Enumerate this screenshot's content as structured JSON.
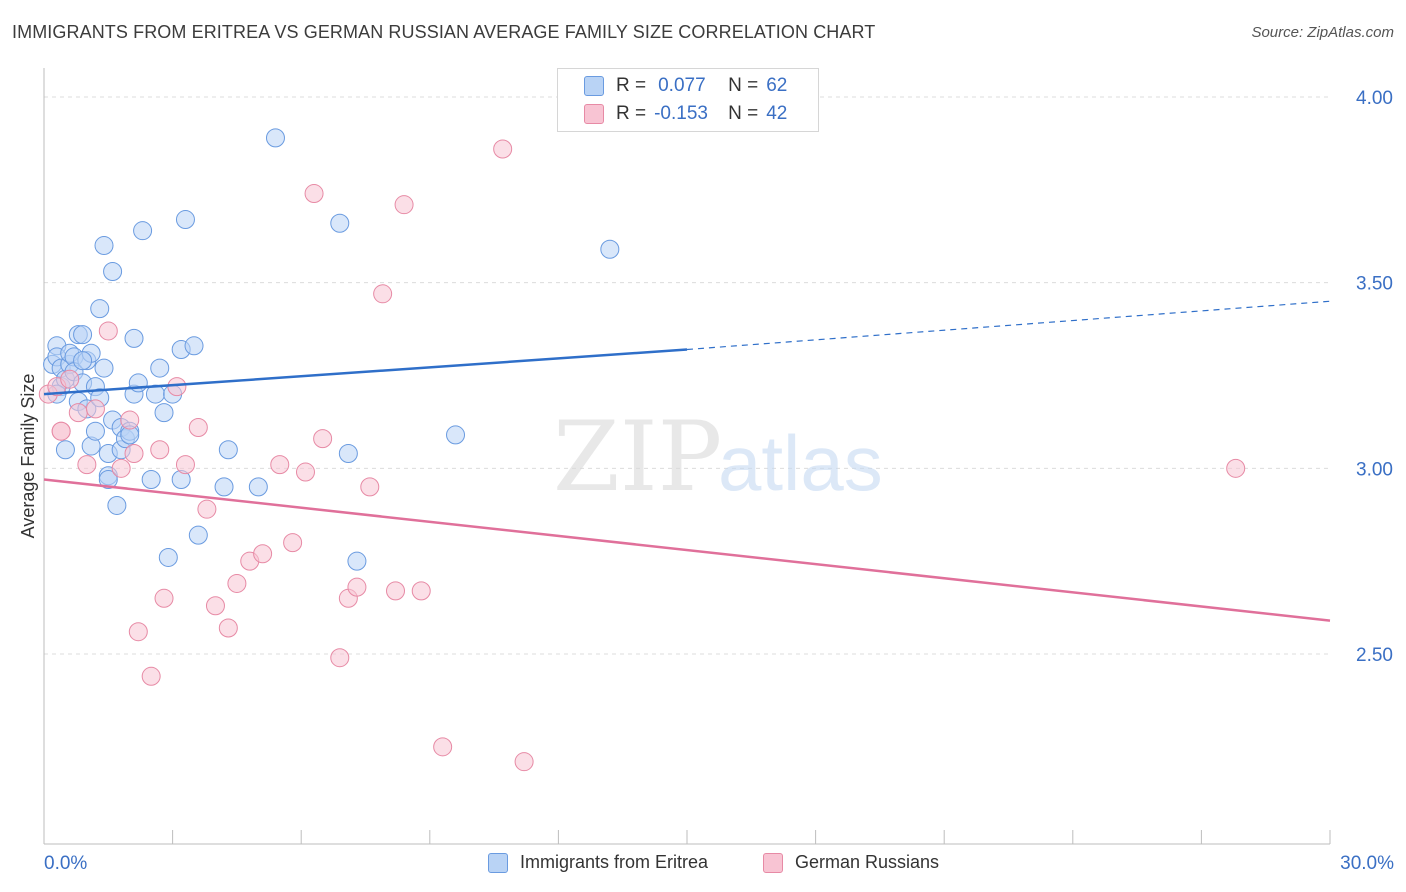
{
  "header": {
    "title": "IMMIGRANTS FROM ERITREA VS GERMAN RUSSIAN AVERAGE FAMILY SIZE CORRELATION CHART",
    "source": "Source: ZipAtlas.com"
  },
  "legend": {
    "r_label": "R =",
    "n_label": "N =",
    "rows": [
      {
        "r": "0.077",
        "n": "62"
      },
      {
        "r": "-0.153",
        "n": "42"
      }
    ]
  },
  "watermark": {
    "zip": "ZIP",
    "atlas": "atlas"
  },
  "colors": {
    "eritrea_fill": "#b9d3f5",
    "eritrea_stroke": "#6a9be0",
    "eritrea_line": "#2f6fc9",
    "german_fill": "#f8c4d3",
    "german_stroke": "#e78aa5",
    "german_line": "#e0709a",
    "axis_text": "#3a6fc4"
  },
  "chart_data": {
    "type": "scatter",
    "title": "IMMIGRANTS FROM ERITREA VS GERMAN RUSSIAN AVERAGE FAMILY SIZE CORRELATION CHART",
    "xlabel": "",
    "ylabel": "Average Family Size",
    "xlim": [
      0,
      30
    ],
    "ylim": [
      2.0,
      4.08
    ],
    "x_tick_labels": [
      "0.0%",
      "30.0%"
    ],
    "y_ticks": [
      2.5,
      3.0,
      3.5,
      4.0
    ],
    "y_tick_labels": [
      "2.50",
      "3.00",
      "3.50",
      "4.00"
    ],
    "grid": "horizontal dashed",
    "legend_position": "top-center",
    "series": [
      {
        "name": "Immigrants from Eritrea",
        "r": 0.077,
        "n": 62,
        "trend": {
          "x": [
            0,
            15
          ],
          "y": [
            3.2,
            3.32
          ],
          "dashed_to": [
            30,
            3.45
          ]
        },
        "points": [
          [
            0.2,
            3.28
          ],
          [
            0.3,
            3.33
          ],
          [
            0.3,
            3.3
          ],
          [
            0.4,
            3.27
          ],
          [
            0.4,
            3.22
          ],
          [
            0.5,
            3.24
          ],
          [
            0.5,
            3.05
          ],
          [
            0.6,
            3.28
          ],
          [
            0.6,
            3.31
          ],
          [
            0.7,
            3.3
          ],
          [
            0.7,
            3.26
          ],
          [
            0.8,
            3.18
          ],
          [
            0.8,
            3.36
          ],
          [
            0.9,
            3.23
          ],
          [
            0.9,
            3.36
          ],
          [
            1.0,
            3.29
          ],
          [
            1.0,
            3.16
          ],
          [
            1.1,
            3.31
          ],
          [
            1.1,
            3.06
          ],
          [
            1.2,
            3.22
          ],
          [
            1.2,
            3.1
          ],
          [
            1.3,
            3.19
          ],
          [
            1.3,
            3.43
          ],
          [
            1.4,
            3.27
          ],
          [
            1.5,
            3.04
          ],
          [
            1.5,
            2.98
          ],
          [
            1.5,
            2.97
          ],
          [
            1.6,
            3.13
          ],
          [
            1.6,
            3.53
          ],
          [
            1.7,
            2.9
          ],
          [
            1.8,
            3.05
          ],
          [
            1.8,
            3.11
          ],
          [
            1.9,
            3.08
          ],
          [
            2.0,
            3.1
          ],
          [
            2.1,
            3.35
          ],
          [
            2.1,
            3.2
          ],
          [
            2.2,
            3.23
          ],
          [
            2.3,
            3.64
          ],
          [
            2.5,
            2.97
          ],
          [
            2.6,
            3.2
          ],
          [
            2.7,
            3.27
          ],
          [
            2.8,
            3.15
          ],
          [
            2.9,
            2.76
          ],
          [
            3.0,
            3.2
          ],
          [
            3.2,
            2.97
          ],
          [
            3.2,
            3.32
          ],
          [
            3.3,
            3.67
          ],
          [
            3.5,
            3.33
          ],
          [
            3.6,
            2.82
          ],
          [
            4.2,
            2.95
          ],
          [
            4.3,
            3.05
          ],
          [
            5.0,
            2.95
          ],
          [
            5.4,
            3.89
          ],
          [
            6.9,
            3.66
          ],
          [
            7.1,
            3.04
          ],
          [
            7.3,
            2.75
          ],
          [
            9.6,
            3.09
          ],
          [
            13.2,
            3.59
          ],
          [
            1.4,
            3.6
          ],
          [
            0.3,
            3.2
          ],
          [
            0.9,
            3.29
          ],
          [
            2.0,
            3.09
          ]
        ]
      },
      {
        "name": "German Russians",
        "r": -0.153,
        "n": 42,
        "trend": {
          "x": [
            0,
            30
          ],
          "y": [
            2.97,
            2.59
          ]
        },
        "points": [
          [
            0.1,
            3.2
          ],
          [
            0.3,
            3.22
          ],
          [
            0.4,
            3.1
          ],
          [
            0.4,
            3.1
          ],
          [
            0.6,
            3.24
          ],
          [
            0.8,
            3.15
          ],
          [
            1.0,
            3.01
          ],
          [
            1.2,
            3.16
          ],
          [
            1.5,
            3.37
          ],
          [
            1.8,
            3.0
          ],
          [
            2.0,
            3.13
          ],
          [
            2.1,
            3.04
          ],
          [
            2.2,
            2.56
          ],
          [
            2.5,
            2.44
          ],
          [
            2.7,
            3.05
          ],
          [
            2.8,
            2.65
          ],
          [
            3.1,
            3.22
          ],
          [
            3.3,
            3.01
          ],
          [
            3.6,
            3.11
          ],
          [
            3.8,
            2.89
          ],
          [
            4.0,
            2.63
          ],
          [
            4.3,
            2.57
          ],
          [
            4.5,
            2.69
          ],
          [
            4.8,
            2.75
          ],
          [
            5.1,
            2.77
          ],
          [
            5.5,
            3.01
          ],
          [
            5.8,
            2.8
          ],
          [
            6.1,
            2.99
          ],
          [
            6.3,
            3.74
          ],
          [
            6.5,
            3.08
          ],
          [
            6.9,
            2.49
          ],
          [
            7.1,
            2.65
          ],
          [
            7.3,
            2.68
          ],
          [
            7.6,
            2.95
          ],
          [
            7.9,
            3.47
          ],
          [
            8.2,
            2.67
          ],
          [
            8.4,
            3.71
          ],
          [
            8.8,
            2.67
          ],
          [
            9.3,
            2.25
          ],
          [
            10.7,
            3.86
          ],
          [
            11.2,
            2.21
          ],
          [
            27.8,
            3.0
          ]
        ]
      }
    ]
  },
  "bottom_legend": [
    {
      "label": "Immigrants from Eritrea"
    },
    {
      "label": "German Russians"
    }
  ]
}
